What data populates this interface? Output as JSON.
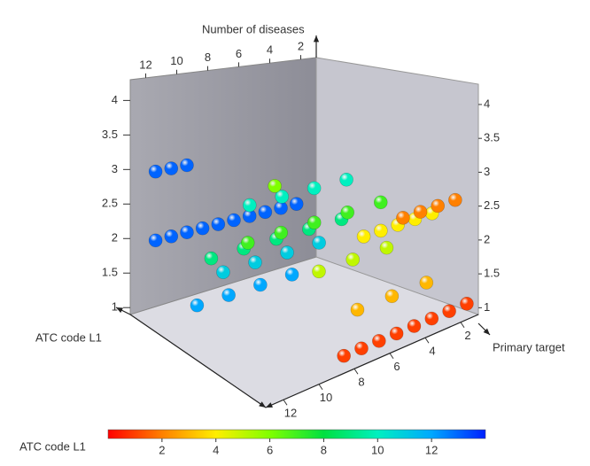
{
  "chart_data": {
    "type": "scatter3d",
    "z_label": "Number of diseases",
    "y_label": "ATC code L1",
    "x_label": "Primary target",
    "colorbar_label": "ATC code L1",
    "xlim": [
      1,
      13
    ],
    "ylim": [
      0,
      14
    ],
    "zlim": [
      0.9,
      4.3
    ],
    "xticks": [
      2,
      4,
      6,
      8,
      10,
      12
    ],
    "zticks": [
      1,
      1.5,
      2,
      2.5,
      3,
      3.5,
      4
    ],
    "clim": [
      0,
      14
    ],
    "cticks": [
      2,
      4,
      6,
      8,
      10,
      12
    ],
    "colorscale": [
      "#ff0000",
      "#ff8000",
      "#ffee00",
      "#80ff00",
      "#00e040",
      "#00f0c0",
      "#00a8ff",
      "#0020ff"
    ],
    "x": [
      3,
      4,
      5,
      6,
      7,
      8,
      9,
      10,
      11,
      12,
      10,
      11,
      12,
      4,
      6,
      8,
      10,
      3,
      5,
      7,
      9,
      2,
      4,
      6,
      8,
      3,
      5,
      7,
      9,
      11,
      2,
      4,
      6,
      8,
      10,
      9,
      3,
      5,
      7,
      1,
      2,
      3,
      4,
      5,
      2,
      4,
      6,
      1,
      2,
      3,
      4,
      1,
      2,
      3,
      4,
      5,
      6,
      7,
      8
    ],
    "y": [
      13,
      13,
      13,
      13,
      13,
      13,
      13,
      13,
      13,
      13,
      13,
      13,
      13,
      12,
      12,
      12,
      12,
      11,
      11,
      11,
      11,
      10,
      10,
      10,
      10,
      9,
      9,
      9,
      9,
      9,
      7,
      7,
      7,
      7,
      7,
      6,
      5,
      5,
      5,
      4,
      4,
      4,
      4,
      4,
      3,
      3,
      3,
      2,
      2,
      2,
      2,
      1,
      1,
      1,
      1,
      1,
      1,
      1,
      1
    ],
    "z": [
      2,
      2,
      2,
      2,
      2,
      2,
      2,
      2,
      2,
      2,
      3,
      3,
      3,
      1,
      1,
      1,
      1,
      1.5,
      1.5,
      1.5,
      1.5,
      2.5,
      2.5,
      2.5,
      2.5,
      2,
      2,
      2,
      2,
      2,
      2.3,
      2.3,
      2.3,
      2.3,
      2.3,
      3.1,
      1.8,
      1.8,
      1.8,
      2.2,
      2.2,
      2.2,
      2.2,
      2.2,
      1.3,
      1.3,
      1.3,
      2.5,
      2.5,
      2.5,
      2.5,
      1,
      1,
      1,
      1,
      1,
      1,
      1,
      1
    ]
  }
}
